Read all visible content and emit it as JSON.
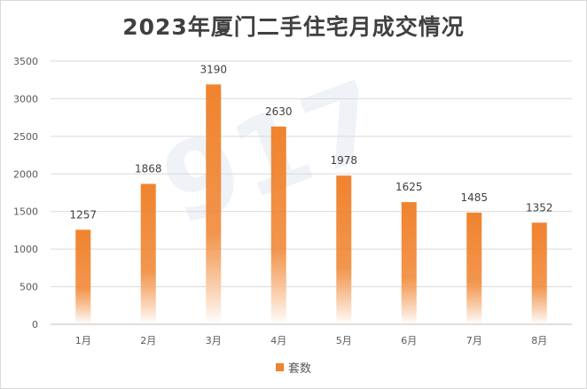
{
  "chart_data": {
    "type": "bar",
    "title": "2023年厦门二手住宅月成交情况",
    "categories": [
      "1月",
      "2月",
      "3月",
      "4月",
      "5月",
      "6月",
      "7月",
      "8月"
    ],
    "series": [
      {
        "name": "套数",
        "values": [
          1257,
          1868,
          3190,
          2630,
          1978,
          1625,
          1485,
          1352
        ]
      }
    ],
    "yticks": [
      0,
      500,
      1000,
      1500,
      2000,
      2500,
      3000,
      3500
    ],
    "ylim": [
      0,
      3500
    ],
    "grid": true,
    "legend": "bottom",
    "data_labels": true
  },
  "colors": {
    "bar": "#f0832e",
    "bar_fade": "#ffffff",
    "grid": "#d9d9d9",
    "axis": "#bfbfbf"
  },
  "watermark": "917"
}
